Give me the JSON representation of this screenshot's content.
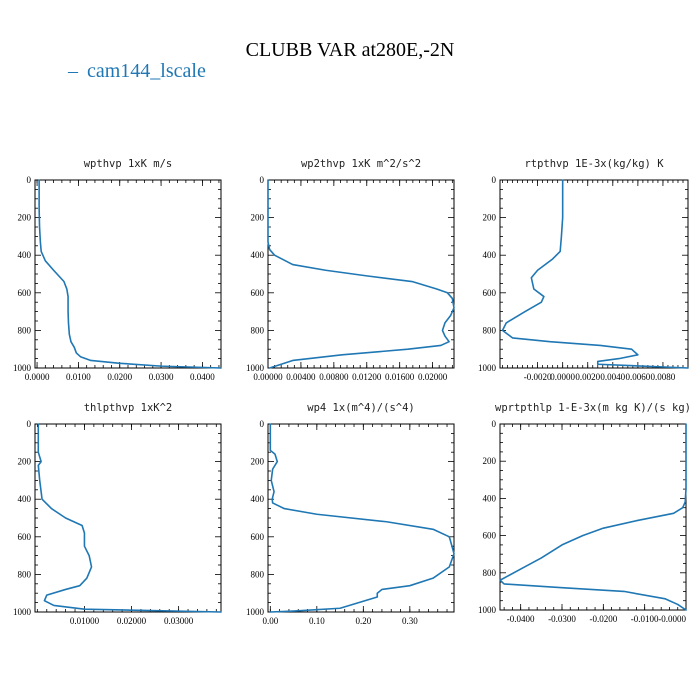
{
  "figure": {
    "title": "CLUBB VAR at280E,-2N",
    "legend": {
      "label": "cam144_lscale",
      "color": "#1f77b4",
      "marker": "–"
    }
  },
  "chart_data": [
    {
      "type": "line",
      "title": "wpthvp  1xK m/s",
      "ylim": [
        1000,
        0
      ],
      "yticks": [
        0,
        200,
        400,
        600,
        800,
        1000
      ],
      "xlim": [
        -0.0005,
        0.0445
      ],
      "xticks": [
        0.0,
        0.01,
        0.02,
        0.03,
        0.04
      ],
      "xtick_labels": [
        "0.0000",
        "0.0100",
        "0.0200",
        "0.0300",
        "0.0400"
      ],
      "grid": false,
      "series": [
        {
          "color": "#1f77b4",
          "x": [
            0.0005,
            0.0005,
            0.0006,
            0.0008,
            0.001,
            0.002,
            0.004,
            0.0065,
            0.0072,
            0.0075,
            0.0075,
            0.0076,
            0.0078,
            0.0082,
            0.009,
            0.0095,
            0.0105,
            0.013,
            0.02,
            0.03,
            0.0445
          ],
          "y": [
            0,
            150,
            250,
            330,
            380,
            430,
            480,
            540,
            580,
            620,
            700,
            760,
            820,
            860,
            890,
            920,
            940,
            960,
            975,
            990,
            1000
          ]
        }
      ]
    },
    {
      "type": "line",
      "title": "wp2thvp  1xK m^2/s^2",
      "ylim": [
        1000,
        0
      ],
      "yticks": [
        0,
        200,
        400,
        600,
        800,
        1000
      ],
      "xlim": [
        0.0,
        0.0226
      ],
      "xticks": [
        0.0,
        0.004,
        0.008,
        0.012,
        0.016,
        0.02
      ],
      "xtick_labels": [
        "0.00000",
        "0.00400",
        "0.00800",
        "0.01200",
        "0.01600",
        "0.02000"
      ],
      "grid": false,
      "series": [
        {
          "color": "#1f77b4",
          "x": [
            0.0,
            0.0,
            0.0002,
            0.0008,
            0.003,
            0.007,
            0.012,
            0.0175,
            0.0205,
            0.0218,
            0.0224,
            0.0226,
            0.0222,
            0.0215,
            0.0212,
            0.0215,
            0.022,
            0.021,
            0.017,
            0.009,
            0.003,
            0.0002
          ],
          "y": [
            0,
            330,
            370,
            400,
            450,
            480,
            510,
            540,
            580,
            600,
            630,
            680,
            720,
            760,
            800,
            830,
            860,
            880,
            900,
            930,
            960,
            1000
          ]
        }
      ]
    },
    {
      "type": "line",
      "title": "rtpthvp  1E-3x(kg/kg) K",
      "ylim": [
        1000,
        0
      ],
      "yticks": [
        0,
        200,
        400,
        600,
        800,
        1000
      ],
      "xlim": [
        -0.005,
        0.01
      ],
      "xticks": [
        -0.002,
        0.0,
        0.002,
        0.004,
        0.006,
        0.008
      ],
      "xtick_labels": [
        "-0.0020",
        "0.0000",
        "0.0020",
        "0.0040",
        "0.0060",
        "0.0080"
      ],
      "grid": false,
      "series": [
        {
          "color": "#1f77b4",
          "x": [
            0.0,
            0.0,
            -0.0001,
            -0.0002,
            -0.0008,
            -0.002,
            -0.0025,
            -0.0023,
            -0.0015,
            -0.0017,
            -0.003,
            -0.0045,
            -0.0048,
            -0.004,
            -0.001,
            0.003,
            0.0055,
            0.006,
            0.0045,
            0.0028,
            0.0028,
            0.01
          ],
          "y": [
            0,
            200,
            300,
            380,
            420,
            480,
            520,
            580,
            620,
            650,
            700,
            760,
            800,
            840,
            860,
            880,
            900,
            930,
            950,
            965,
            980,
            1000
          ]
        }
      ]
    },
    {
      "type": "line",
      "title": "thlpthvp  1xK^2",
      "ylim": [
        1000,
        0
      ],
      "yticks": [
        0,
        200,
        400,
        600,
        800,
        1000
      ],
      "xlim": [
        -0.0005,
        0.039
      ],
      "xticks": [
        0.01,
        0.02,
        0.03
      ],
      "xtick_labels": [
        "0.01000",
        "0.02000",
        "0.03000"
      ],
      "grid": false,
      "series": [
        {
          "color": "#1f77b4",
          "x": [
            0.0002,
            0.0002,
            0.0008,
            0.0002,
            0.0005,
            0.001,
            0.003,
            0.006,
            0.0095,
            0.01,
            0.01,
            0.011,
            0.0115,
            0.0105,
            0.009,
            0.006,
            0.002,
            0.0015,
            0.0035,
            0.01,
            0.039
          ],
          "y": [
            0,
            150,
            200,
            220,
            300,
            400,
            450,
            500,
            540,
            580,
            650,
            700,
            760,
            820,
            860,
            880,
            910,
            940,
            965,
            985,
            1000
          ]
        }
      ]
    },
    {
      "type": "line",
      "title": "wp4  1x(m^4)/(s^4)",
      "ylim": [
        1000,
        0
      ],
      "yticks": [
        0,
        200,
        400,
        600,
        800,
        1000
      ],
      "xlim": [
        -0.005,
        0.395
      ],
      "xticks": [
        0.0,
        0.1,
        0.2,
        0.3
      ],
      "xtick_labels": [
        "0.00",
        "0.10",
        "0.20",
        "0.30"
      ],
      "grid": false,
      "series": [
        {
          "color": "#1f77b4",
          "x": [
            0.0,
            0.0,
            0.01,
            0.015,
            0.005,
            0.002,
            0.008,
            0.004,
            0.005,
            0.03,
            0.1,
            0.25,
            0.35,
            0.385,
            0.395,
            0.385,
            0.35,
            0.3,
            0.24,
            0.23,
            0.23,
            0.15,
            0.05,
            0.0
          ],
          "y": [
            0,
            140,
            160,
            200,
            240,
            300,
            360,
            400,
            420,
            450,
            480,
            520,
            560,
            600,
            690,
            760,
            820,
            860,
            880,
            900,
            920,
            980,
            995,
            1000
          ]
        }
      ]
    },
    {
      "type": "line",
      "title": "wprtpthlp  1-E-3x(m kg K)/(s kg)",
      "ylim": [
        1000,
        0
      ],
      "yticks": [
        0,
        200,
        400,
        600,
        800,
        1000
      ],
      "xlim": [
        -0.045,
        0.0
      ],
      "xticks": [
        -0.04,
        -0.03,
        -0.02,
        -0.01,
        0.0
      ],
      "xtick_labels": [
        "-0.0400",
        "-0.0300",
        "-0.0200",
        "-0.0100",
        "-0.0000"
      ],
      "grid": false,
      "series": [
        {
          "color": "#1f77b4",
          "x": [
            0.0,
            0.0,
            -0.0002,
            -0.0008,
            -0.003,
            -0.012,
            -0.02,
            -0.025,
            -0.03,
            -0.035,
            -0.04,
            -0.045,
            -0.044,
            -0.03,
            -0.015,
            -0.005,
            -0.002,
            0.0
          ],
          "y": [
            0,
            350,
            420,
            450,
            480,
            520,
            560,
            600,
            650,
            720,
            780,
            840,
            860,
            880,
            900,
            940,
            970,
            1000
          ]
        }
      ]
    }
  ]
}
